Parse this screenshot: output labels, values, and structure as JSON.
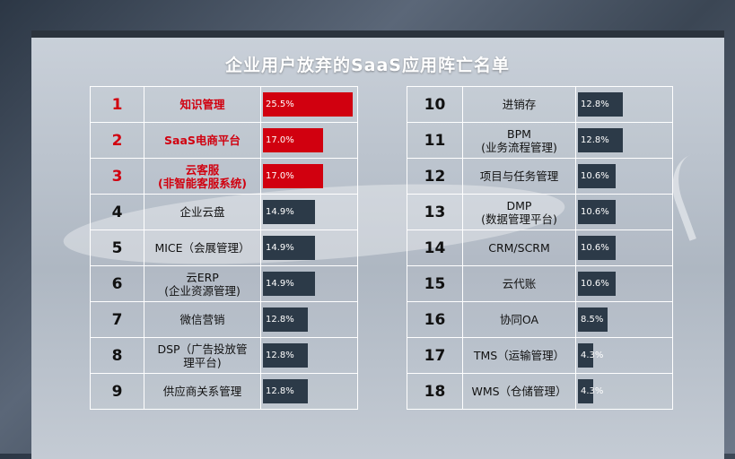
{
  "chart_data": {
    "type": "table",
    "title": "企业用户放弃的SaaS应用阵亡名单",
    "rows": [
      {
        "rank": "1",
        "name": "知识管理",
        "value": 25.5,
        "label": "25.5%",
        "highlight": true
      },
      {
        "rank": "2",
        "name": "SaaS电商平台",
        "value": 17.0,
        "label": "17.0%",
        "highlight": true
      },
      {
        "rank": "3",
        "name": "云客服\n(非智能客服系统)",
        "value": 17.0,
        "label": "17.0%",
        "highlight": true
      },
      {
        "rank": "4",
        "name": "企业云盘",
        "value": 14.9,
        "label": "14.9%",
        "highlight": false
      },
      {
        "rank": "5",
        "name": "MICE（会展管理）",
        "value": 14.9,
        "label": "14.9%",
        "highlight": false
      },
      {
        "rank": "6",
        "name": "云ERP\n(企业资源管理)",
        "value": 14.9,
        "label": "14.9%",
        "highlight": false
      },
      {
        "rank": "7",
        "name": "微信营销",
        "value": 12.8,
        "label": "12.8%",
        "highlight": false
      },
      {
        "rank": "8",
        "name": "DSP（广告投放管\n理平台)",
        "value": 12.8,
        "label": "12.8%",
        "highlight": false
      },
      {
        "rank": "9",
        "name": "供应商关系管理",
        "value": 12.8,
        "label": "12.8%",
        "highlight": false
      },
      {
        "rank": "10",
        "name": "进销存",
        "value": 12.8,
        "label": "12.8%",
        "highlight": false
      },
      {
        "rank": "11",
        "name": "BPM\n(业务流程管理)",
        "value": 12.8,
        "label": "12.8%",
        "highlight": false
      },
      {
        "rank": "12",
        "name": "项目与任务管理",
        "value": 10.6,
        "label": "10.6%",
        "highlight": false
      },
      {
        "rank": "13",
        "name": "DMP\n(数据管理平台)",
        "value": 10.6,
        "label": "10.6%",
        "highlight": false
      },
      {
        "rank": "14",
        "name": "CRM/SCRM",
        "value": 10.6,
        "label": "10.6%",
        "highlight": false
      },
      {
        "rank": "15",
        "name": "云代账",
        "value": 10.6,
        "label": "10.6%",
        "highlight": false
      },
      {
        "rank": "16",
        "name": "协同OA",
        "value": 8.5,
        "label": "8.5%",
        "highlight": false
      },
      {
        "rank": "17",
        "name": "TMS（运输管理）",
        "value": 4.3,
        "label": "4.3%",
        "highlight": false
      },
      {
        "rank": "18",
        "name": "WMS（仓储管理）",
        "value": 4.3,
        "label": "4.3%",
        "highlight": false
      }
    ],
    "value_max": 25.5,
    "colors": {
      "highlight": "#d1000f",
      "normal": "#2c3a48"
    }
  }
}
